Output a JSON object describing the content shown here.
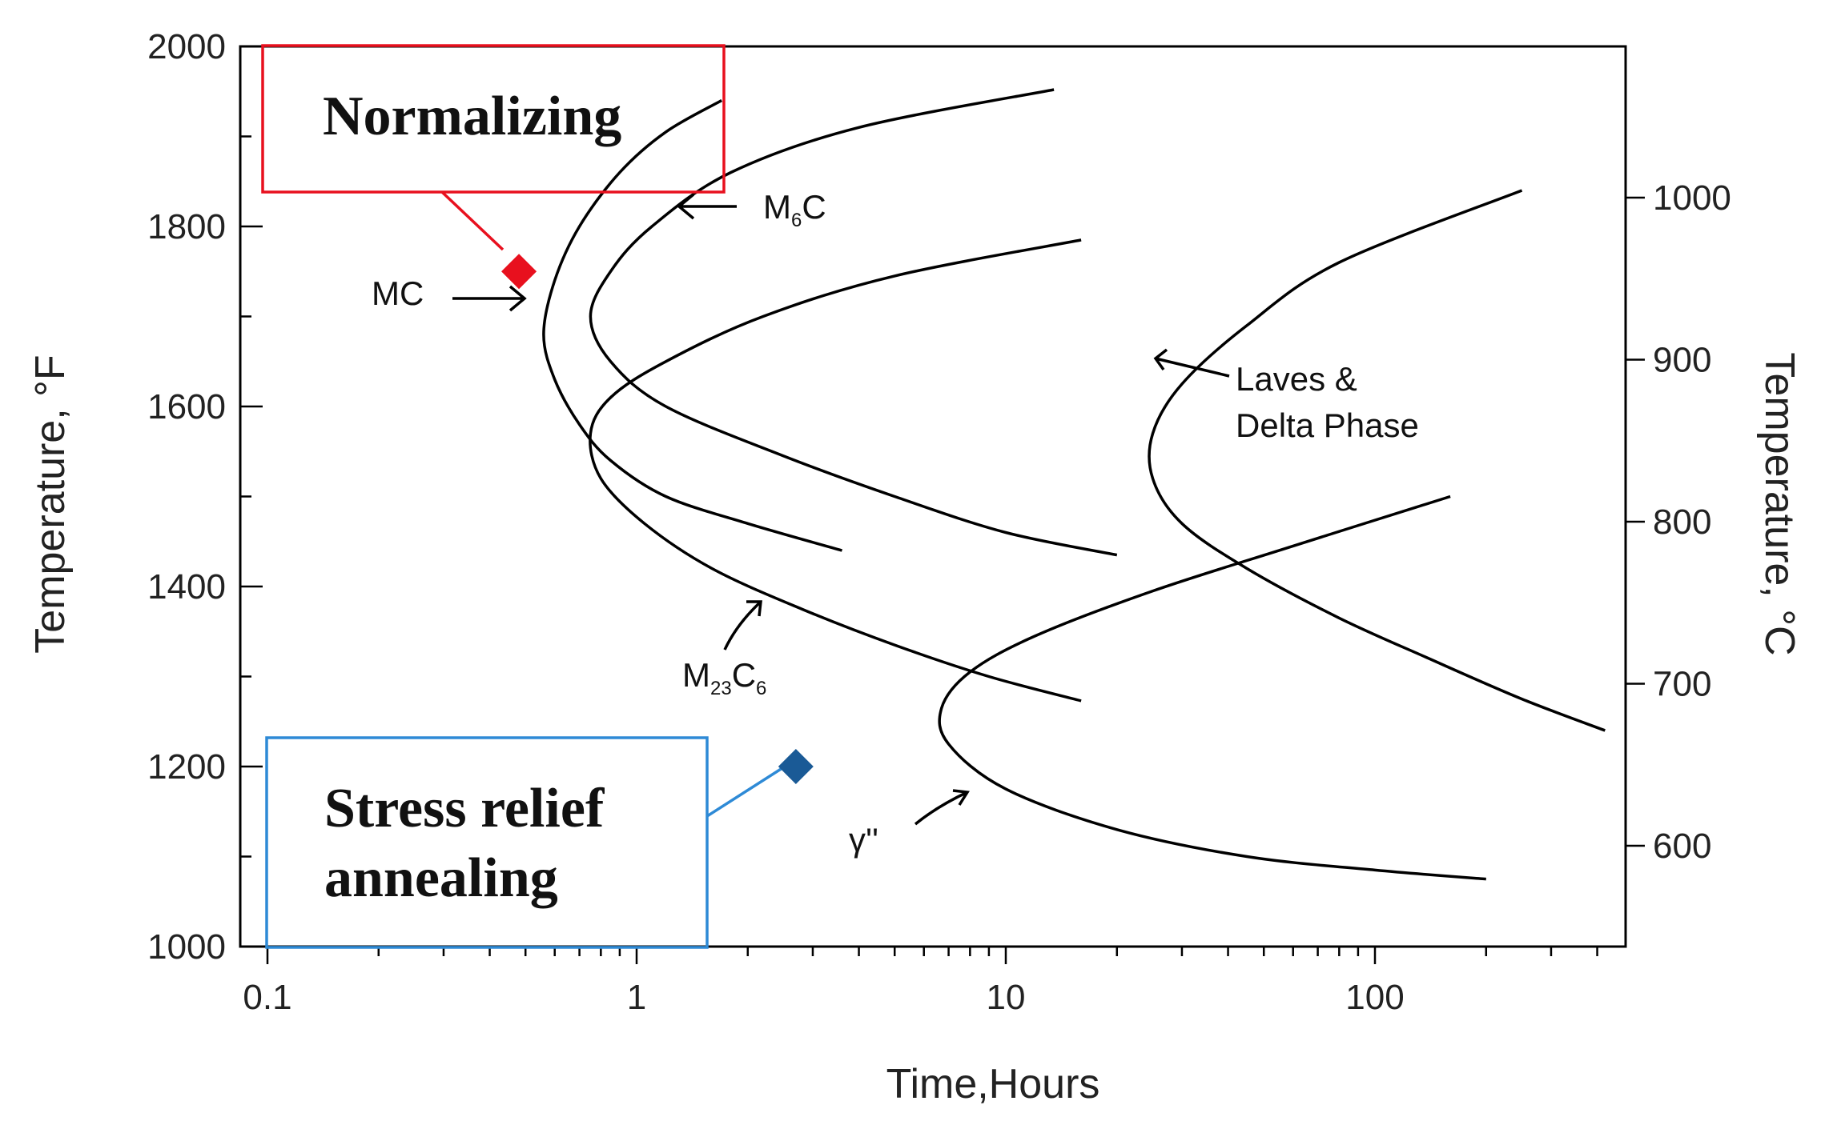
{
  "chart_data": {
    "type": "line",
    "title": "",
    "xlabel": "Time,Hours",
    "ylabel": "Temperature, °F",
    "y2label": "Temperature, °C",
    "xscale": "log",
    "xlim": [
      0.1,
      450
    ],
    "ylim": [
      1000,
      2000
    ],
    "y2lim": [
      538,
      1093
    ],
    "grid": false,
    "x_ticks": [
      {
        "value": 0.1,
        "label": "0.1"
      },
      {
        "value": 1,
        "label": "1"
      },
      {
        "value": 10,
        "label": "10"
      },
      {
        "value": 100,
        "label": "100"
      }
    ],
    "y_ticks": [
      {
        "value": 1000,
        "label": "1000"
      },
      {
        "value": 1200,
        "label": "1200"
      },
      {
        "value": 1400,
        "label": "1400"
      },
      {
        "value": 1600,
        "label": "1600"
      },
      {
        "value": 1800,
        "label": "1800"
      },
      {
        "value": 2000,
        "label": "2000"
      }
    ],
    "y2_ticks": [
      {
        "value": 600,
        "label": "600"
      },
      {
        "value": 700,
        "label": "700"
      },
      {
        "value": 800,
        "label": "800"
      },
      {
        "value": 900,
        "label": "900"
      },
      {
        "value": 1000,
        "label": "1000"
      }
    ],
    "series": [
      {
        "name": "MC",
        "points": [
          [
            3.6,
            1440
          ],
          [
            2.0,
            1470
          ],
          [
            1.2,
            1500
          ],
          [
            0.85,
            1540
          ],
          [
            0.7,
            1580
          ],
          [
            0.6,
            1630
          ],
          [
            0.56,
            1680
          ],
          [
            0.6,
            1740
          ],
          [
            0.7,
            1800
          ],
          [
            0.9,
            1860
          ],
          [
            1.2,
            1905
          ],
          [
            1.7,
            1940
          ]
        ]
      },
      {
        "name": "M6C",
        "points": [
          [
            20,
            1435
          ],
          [
            10,
            1460
          ],
          [
            5,
            1500
          ],
          [
            2.5,
            1545
          ],
          [
            1.2,
            1600
          ],
          [
            0.85,
            1650
          ],
          [
            0.75,
            1700
          ],
          [
            0.85,
            1750
          ],
          [
            1.1,
            1800
          ],
          [
            1.8,
            1860
          ],
          [
            4,
            1910
          ],
          [
            13.5,
            1952
          ]
        ]
      },
      {
        "name": "M23C6",
        "points": [
          [
            16,
            1273
          ],
          [
            9,
            1300
          ],
          [
            5,
            1335
          ],
          [
            2.8,
            1375
          ],
          [
            1.6,
            1420
          ],
          [
            1.05,
            1470
          ],
          [
            0.8,
            1520
          ],
          [
            0.75,
            1570
          ],
          [
            0.85,
            1610
          ],
          [
            1.2,
            1650
          ],
          [
            2.2,
            1700
          ],
          [
            5,
            1745
          ],
          [
            16,
            1785
          ]
        ]
      },
      {
        "name": "Laves & Delta Phase",
        "points": [
          [
            420,
            1240
          ],
          [
            250,
            1275
          ],
          [
            140,
            1320
          ],
          [
            80,
            1365
          ],
          [
            45,
            1420
          ],
          [
            30,
            1470
          ],
          [
            25,
            1520
          ],
          [
            25,
            1570
          ],
          [
            30,
            1625
          ],
          [
            45,
            1690
          ],
          [
            80,
            1760
          ],
          [
            250,
            1840
          ]
        ]
      },
      {
        "name": "γ\"",
        "points": [
          [
            200,
            1075
          ],
          [
            100,
            1085
          ],
          [
            45,
            1100
          ],
          [
            20,
            1130
          ],
          [
            10,
            1175
          ],
          [
            7,
            1225
          ],
          [
            6.7,
            1265
          ],
          [
            8,
            1305
          ],
          [
            12,
            1345
          ],
          [
            25,
            1395
          ],
          [
            60,
            1445
          ],
          [
            160,
            1500
          ]
        ]
      }
    ],
    "markers": [
      {
        "name": "Normalizing",
        "x": 0.48,
        "y": 1750,
        "color": "#e8101e"
      },
      {
        "name": "Stress relief annealing",
        "x": 2.7,
        "y": 1200,
        "color": "#1a5a96"
      }
    ],
    "annotations": [
      {
        "id": "mc",
        "text": "MC"
      },
      {
        "id": "m6c",
        "base": "M",
        "sub": "6",
        "tail": "C"
      },
      {
        "id": "m23c6",
        "base": "M",
        "sub": "23",
        "mid": "C",
        "sub2": "6"
      },
      {
        "id": "laves",
        "lines": [
          "Laves &",
          "Delta Phase"
        ]
      },
      {
        "id": "gamma",
        "text": "γ\"",
        "display": "γ''"
      }
    ]
  },
  "boxes": {
    "normalizing": {
      "label": "Normalizing",
      "color": "#e8101e"
    },
    "stress": {
      "line1": "Stress relief",
      "line2": "annealing",
      "color": "#2e8ad6"
    }
  }
}
